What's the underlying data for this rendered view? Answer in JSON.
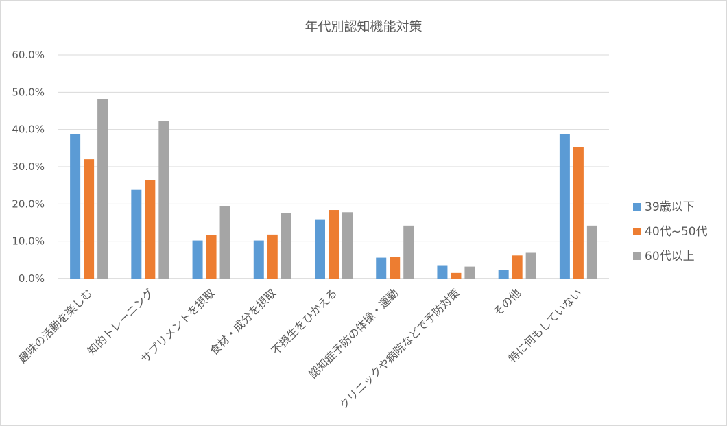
{
  "chart_data": {
    "type": "bar",
    "title": "年代別認知機能対策",
    "categories": [
      "趣味の活動を楽しむ",
      "知的トレーニング",
      "サプリメントを摂取",
      "食材・成分を摂取",
      "不摂生をひかえる",
      "認知症予防の体操・運動",
      "クリニックや病院などで予防対策",
      "その他",
      "特に何もしていない"
    ],
    "series": [
      {
        "name": "39歳以下",
        "values": [
          38.7,
          23.8,
          10.2,
          10.2,
          15.9,
          5.6,
          3.4,
          2.3,
          38.7
        ]
      },
      {
        "name": "40代~50代",
        "values": [
          32.0,
          26.5,
          11.6,
          11.8,
          18.4,
          5.8,
          1.5,
          6.2,
          35.2
        ]
      },
      {
        "name": "60代以上",
        "values": [
          48.2,
          42.3,
          19.5,
          17.5,
          17.8,
          14.2,
          3.2,
          6.9,
          14.2
        ]
      }
    ],
    "colors": [
      "#5b9bd5",
      "#ed7d31",
      "#a5a5a5"
    ],
    "ylim": [
      0,
      60
    ],
    "yticks": [
      "0.0%",
      "10.0%",
      "20.0%",
      "30.0%",
      "40.0%",
      "50.0%",
      "60.0%"
    ],
    "grid": true,
    "legend": "right"
  }
}
